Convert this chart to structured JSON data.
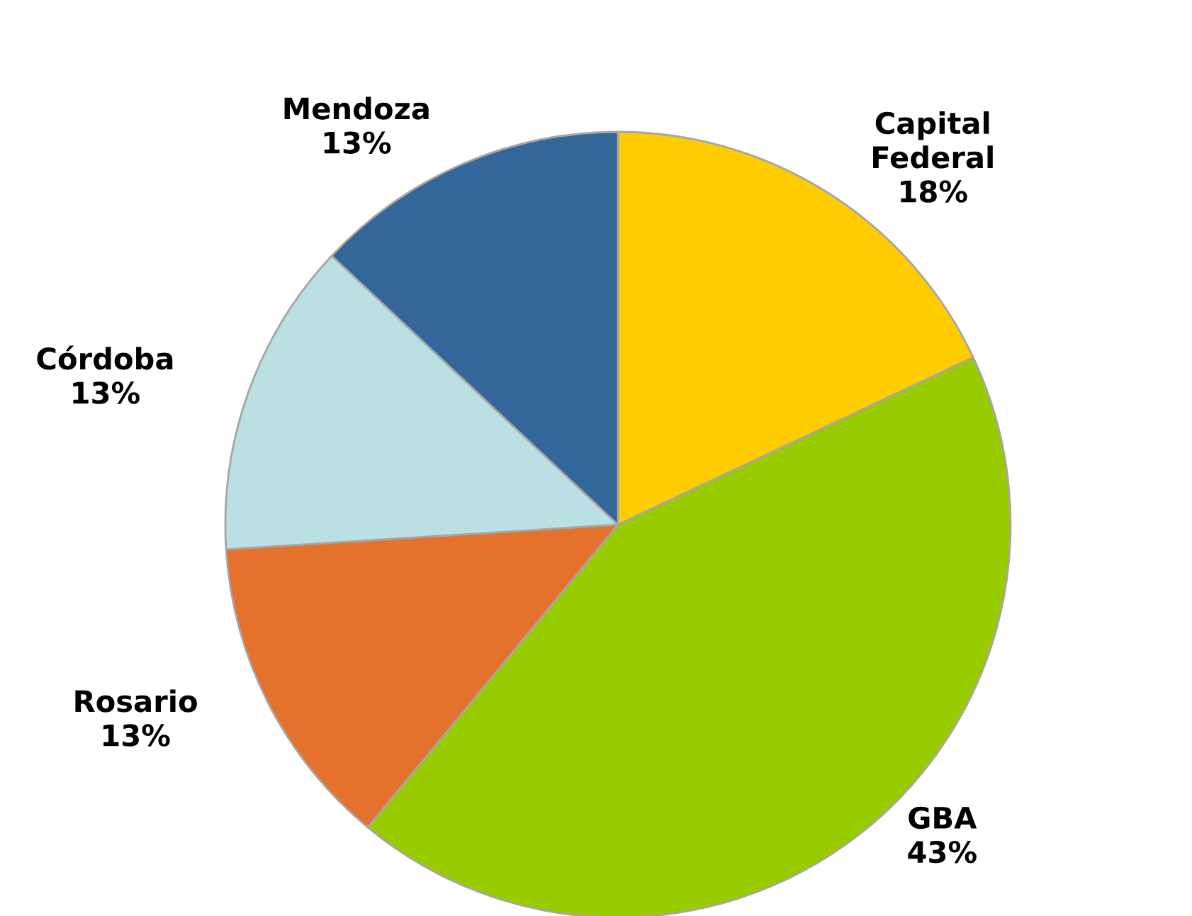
{
  "chart_data": {
    "type": "pie",
    "categories": [
      "Capital Federal",
      "GBA",
      "Rosario",
      "Córdoba",
      "Mendoza"
    ],
    "values": [
      18,
      43,
      13,
      13,
      13
    ],
    "value_labels": [
      "18%",
      "43%",
      "13%",
      "13%",
      "13%"
    ],
    "colors": [
      "#ffcc00",
      "#99cc00",
      "#e4722c",
      "#bbe0e3",
      "#336699"
    ]
  }
}
